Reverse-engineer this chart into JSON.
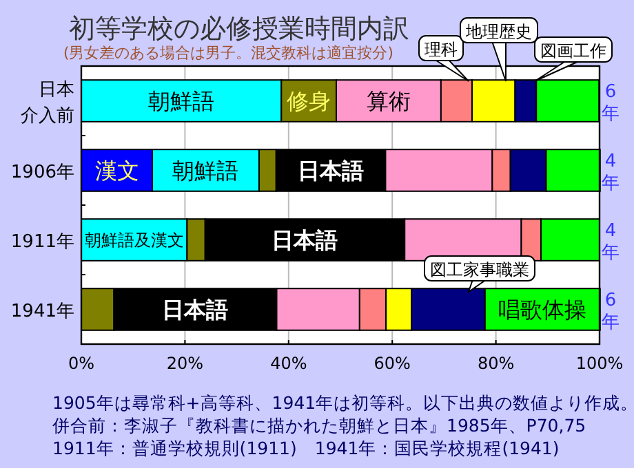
{
  "chart_data": {
    "type": "bar",
    "orientation": "horizontal",
    "stacked": true,
    "title": "初等学校の必修授業時間内訳",
    "subtitle": "(男女差のある場合は男子。混交教科は適宜按分)",
    "categories": [
      "日本介入前",
      "1906年",
      "1911年",
      "1941年"
    ],
    "series": [
      {
        "color": "#0000ff",
        "values": [
          null,
          13.7,
          null,
          null
        ],
        "value_labels": [
          null,
          "漢文",
          null,
          null
        ]
      },
      {
        "color": "#00ffff",
        "values": [
          null,
          null,
          20.4,
          null
        ],
        "value_labels": [
          null,
          null,
          "朝鮮語及漢文",
          null
        ]
      },
      {
        "color": "#00ffff",
        "values": [
          38.6,
          20.6,
          null,
          null
        ],
        "value_labels": [
          "朝鮮語",
          "朝鮮語",
          null,
          null
        ]
      },
      {
        "color": "#808000",
        "values": [
          10.6,
          3.3,
          3.5,
          6.3
        ],
        "value_labels": [
          "修身",
          null,
          null,
          null
        ]
      },
      {
        "color": "#000000",
        "values": [
          null,
          21.1,
          38.5,
          31.4
        ],
        "value_labels": [
          null,
          "日本語",
          "日本語",
          "日本語"
        ]
      },
      {
        "color": "#ff99cc",
        "values": [
          20.2,
          20.6,
          22.5,
          16.0
        ],
        "value_labels": [
          "算術",
          null,
          null,
          null
        ]
      },
      {
        "color": "#ff8080",
        "values": [
          6.0,
          3.5,
          3.8,
          5.1
        ]
      },
      {
        "color": "#ffff00",
        "values": [
          8.3,
          null,
          null,
          4.9
        ]
      },
      {
        "color": "#000080",
        "values": [
          4.1,
          6.9,
          null,
          null
        ]
      },
      {
        "color": "#000080",
        "values": [
          null,
          null,
          null,
          14.2
        ]
      },
      {
        "color": "#00ff00",
        "values": [
          12.1,
          10.4,
          11.3,
          22.2
        ],
        "value_labels": [
          null,
          null,
          null,
          "唱歌体操"
        ]
      }
    ],
    "xlim": [
      0,
      100
    ],
    "xticks": [
      {
        "value": 0,
        "label": "0%"
      },
      {
        "value": 20,
        "label": "20%"
      },
      {
        "value": 40,
        "label": "40%"
      },
      {
        "value": 60,
        "label": "60%"
      },
      {
        "value": 80,
        "label": "80%"
      },
      {
        "value": 100,
        "label": "100%"
      }
    ],
    "grid": "x",
    "annotations": [
      "理科",
      "地理歴史",
      "図画工作",
      "図工家事職業",
      "6年",
      "4年",
      "4年",
      "6年",
      "1905年は尋常科+高等科、1941年は初等科。以下出典の数値より作成。",
      "併合前：李淑子『教科書に描かれた朝鮮と日本』1985年、P70,75",
      "1911年：普通学校規則(1911)　1941年：国民学校規程(1941)"
    ]
  }
}
